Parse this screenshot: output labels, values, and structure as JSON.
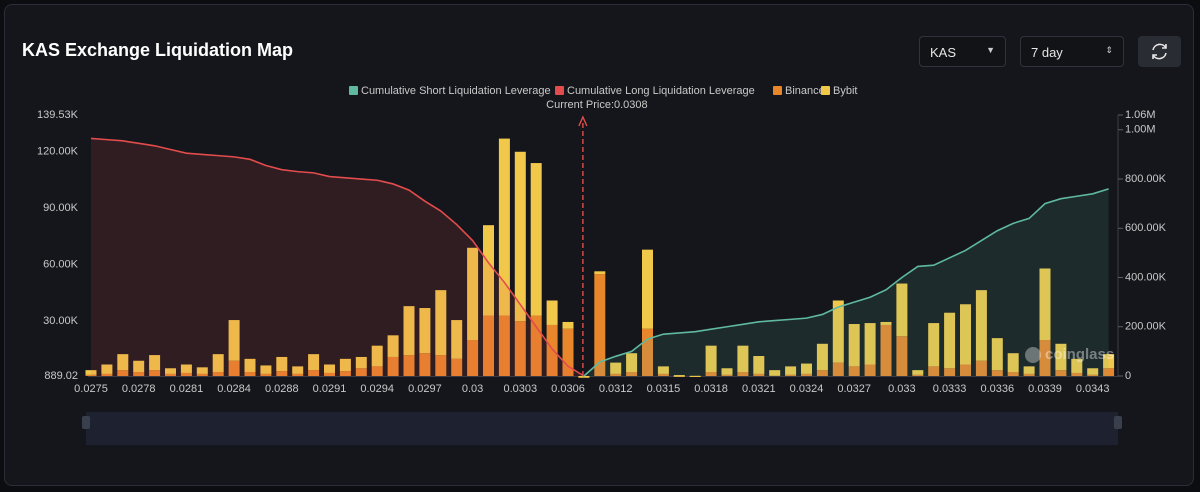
{
  "chart_data": {
    "type": "bar",
    "title": "KAS Exchange Liquidation Map",
    "categories": [
      "0.0275",
      null,
      null,
      "0.0278",
      null,
      null,
      "0.0281",
      null,
      null,
      "0.0284",
      null,
      null,
      "0.0288",
      null,
      null,
      "0.0291",
      null,
      null,
      "0.0294",
      null,
      null,
      "0.0297",
      null,
      null,
      "0.03",
      null,
      null,
      "0.0303",
      null,
      null,
      "0.0306",
      null,
      null,
      "0.0312",
      null,
      null,
      "0.0315",
      null,
      null,
      "0.0318",
      null,
      null,
      "0.0321",
      null,
      null,
      "0.0324",
      null,
      null,
      "0.0327",
      null,
      null,
      "0.033",
      null,
      null,
      "0.0333",
      null,
      null,
      "0.0336",
      null,
      null,
      "0.0339",
      null,
      null,
      "0.0343",
      null
    ],
    "series": [
      {
        "name": "Cumulative Short Liquidation Leverage",
        "type": "line",
        "axis": "y2",
        "color": "#5fb9a1",
        "values": [
          null,
          null,
          null,
          null,
          null,
          null,
          null,
          null,
          null,
          null,
          null,
          null,
          null,
          null,
          null,
          null,
          null,
          null,
          null,
          null,
          null,
          null,
          null,
          null,
          null,
          null,
          null,
          null,
          null,
          null,
          null,
          0,
          57000,
          80000,
          100000,
          150000,
          170000,
          175000,
          180000,
          190000,
          200000,
          210000,
          220000,
          225000,
          230000,
          235000,
          250000,
          280000,
          300000,
          320000,
          350000,
          400000,
          445000,
          450000,
          480000,
          510000,
          550000,
          590000,
          620000,
          640000,
          700000,
          720000,
          730000,
          740000,
          760000
        ]
      },
      {
        "name": "Cumulative Long Liquidation Leverage",
        "type": "line",
        "axis": "y2",
        "color": "#e24c4c",
        "values": [
          965000,
          960000,
          955000,
          945000,
          935000,
          920000,
          905000,
          900000,
          895000,
          890000,
          880000,
          855000,
          838000,
          830000,
          825000,
          810000,
          805000,
          800000,
          795000,
          780000,
          755000,
          710000,
          670000,
          615000,
          550000,
          460000,
          380000,
          290000,
          200000,
          110000,
          40000,
          0,
          null,
          null,
          null,
          null,
          null,
          null,
          null,
          null,
          null,
          null,
          null,
          null,
          null,
          null,
          null,
          null,
          null,
          null,
          null,
          null,
          null,
          null,
          null,
          null,
          null,
          null,
          null,
          null,
          null,
          null,
          null,
          null,
          null
        ]
      },
      {
        "name": "Binance",
        "type": "bar",
        "color": "#e8862c",
        "values": [
          1500,
          2000,
          4000,
          3000,
          4000,
          2000,
          2500,
          2000,
          3000,
          9000,
          3000,
          2000,
          3500,
          2000,
          4000,
          2500,
          3500,
          5000,
          6000,
          11000,
          12000,
          13000,
          12000,
          10000,
          20000,
          33000,
          33000,
          30000,
          33000,
          28000,
          26000,
          0,
          55000,
          2000,
          3000,
          26000,
          2000,
          500,
          400,
          3000,
          1500,
          3000,
          2000,
          1000,
          1500,
          2000,
          4000,
          8000,
          6000,
          7000,
          28000,
          22000,
          1500,
          6000,
          5000,
          7000,
          9000,
          4000,
          3000,
          2000,
          20000,
          4000,
          2500,
          1500,
          5000
        ]
      },
      {
        "name": "Bybit",
        "type": "bar",
        "color": "#f2c84b",
        "values": [
          2500,
          5000,
          8500,
          6000,
          8000,
          3000,
          4500,
          3500,
          9500,
          21600,
          7000,
          4500,
          7500,
          4000,
          8500,
          4500,
          6500,
          6000,
          11000,
          11500,
          26000,
          24000,
          34500,
          20600,
          49000,
          48000,
          94000,
          90000,
          81000,
          13000,
          3600,
          0,
          1500,
          6000,
          10000,
          42000,
          4000,
          900,
          600,
          14000,
          3500,
          14000,
          9500,
          3000,
          4500,
          5500,
          14000,
          33000,
          22500,
          22000,
          1600,
          28000,
          2500,
          23000,
          29500,
          32000,
          37500,
          17000,
          10000,
          4000,
          38000,
          14000,
          7500,
          3500,
          7500
        ]
      }
    ],
    "ylim": [
      889.02,
      139530
    ],
    "yticks": [
      889.02,
      {
        "value": 30000,
        "label": "30.00K"
      },
      {
        "value": 60000,
        "label": "60.00K"
      },
      {
        "value": 90000,
        "label": "90.00K"
      },
      {
        "value": 120000,
        "label": "120.00K"
      },
      {
        "value": 139530,
        "label": "139.53K"
      }
    ],
    "y2lim": [
      0,
      1060000
    ],
    "y2ticks": [
      0,
      {
        "value": 200000,
        "label": "200.00K"
      },
      {
        "value": 400000,
        "label": "400.00K"
      },
      {
        "value": 600000,
        "label": "600.00K"
      },
      {
        "value": 800000,
        "label": "800.00K"
      },
      {
        "value": 1000000,
        "label": "1.00M"
      },
      {
        "value": 1060000,
        "label": "1.06M"
      }
    ],
    "grid": false,
    "legend": "top",
    "annotation": "Current Price:0.0308"
  },
  "controls": {
    "coin": "KAS",
    "range": "7 day"
  },
  "watermark": "coinglass"
}
